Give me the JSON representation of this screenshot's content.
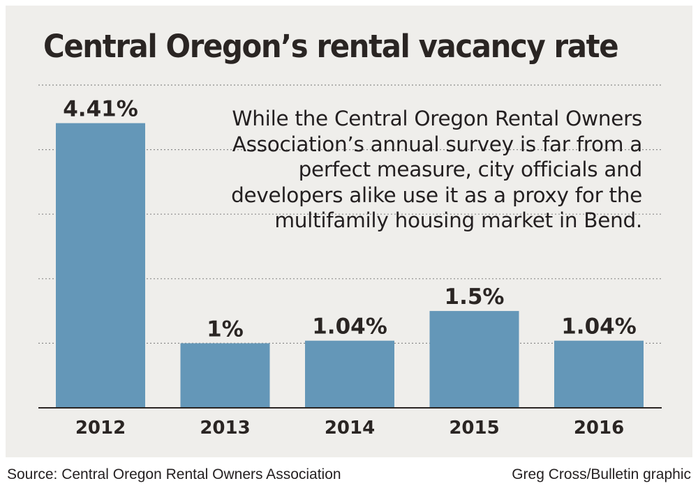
{
  "chart_data": {
    "type": "bar",
    "title": "Central Oregon’s rental vacancy rate",
    "categories": [
      "2012",
      "2013",
      "2014",
      "2015",
      "2016"
    ],
    "values": [
      4.41,
      1,
      1.04,
      1.5,
      1.04
    ],
    "value_labels": [
      "4.41%",
      "1%",
      "1.04%",
      "1.5%",
      "1.04%"
    ],
    "ylim": [
      0,
      5
    ],
    "grid": true,
    "gridlines": [
      1,
      2,
      3,
      4,
      5
    ],
    "xlabel": "",
    "ylabel": "",
    "bar_color": "#6497b8",
    "annotation": "While the Central Oregon Rental Owners Association’s annual survey is far from a perfect measure, city officials and developers alike use it as a proxy for the multifamily housing market in Bend."
  },
  "footer": {
    "source": "Source: Central Oregon Rental Owners Association",
    "credit": "Greg Cross/Bulletin graphic"
  }
}
